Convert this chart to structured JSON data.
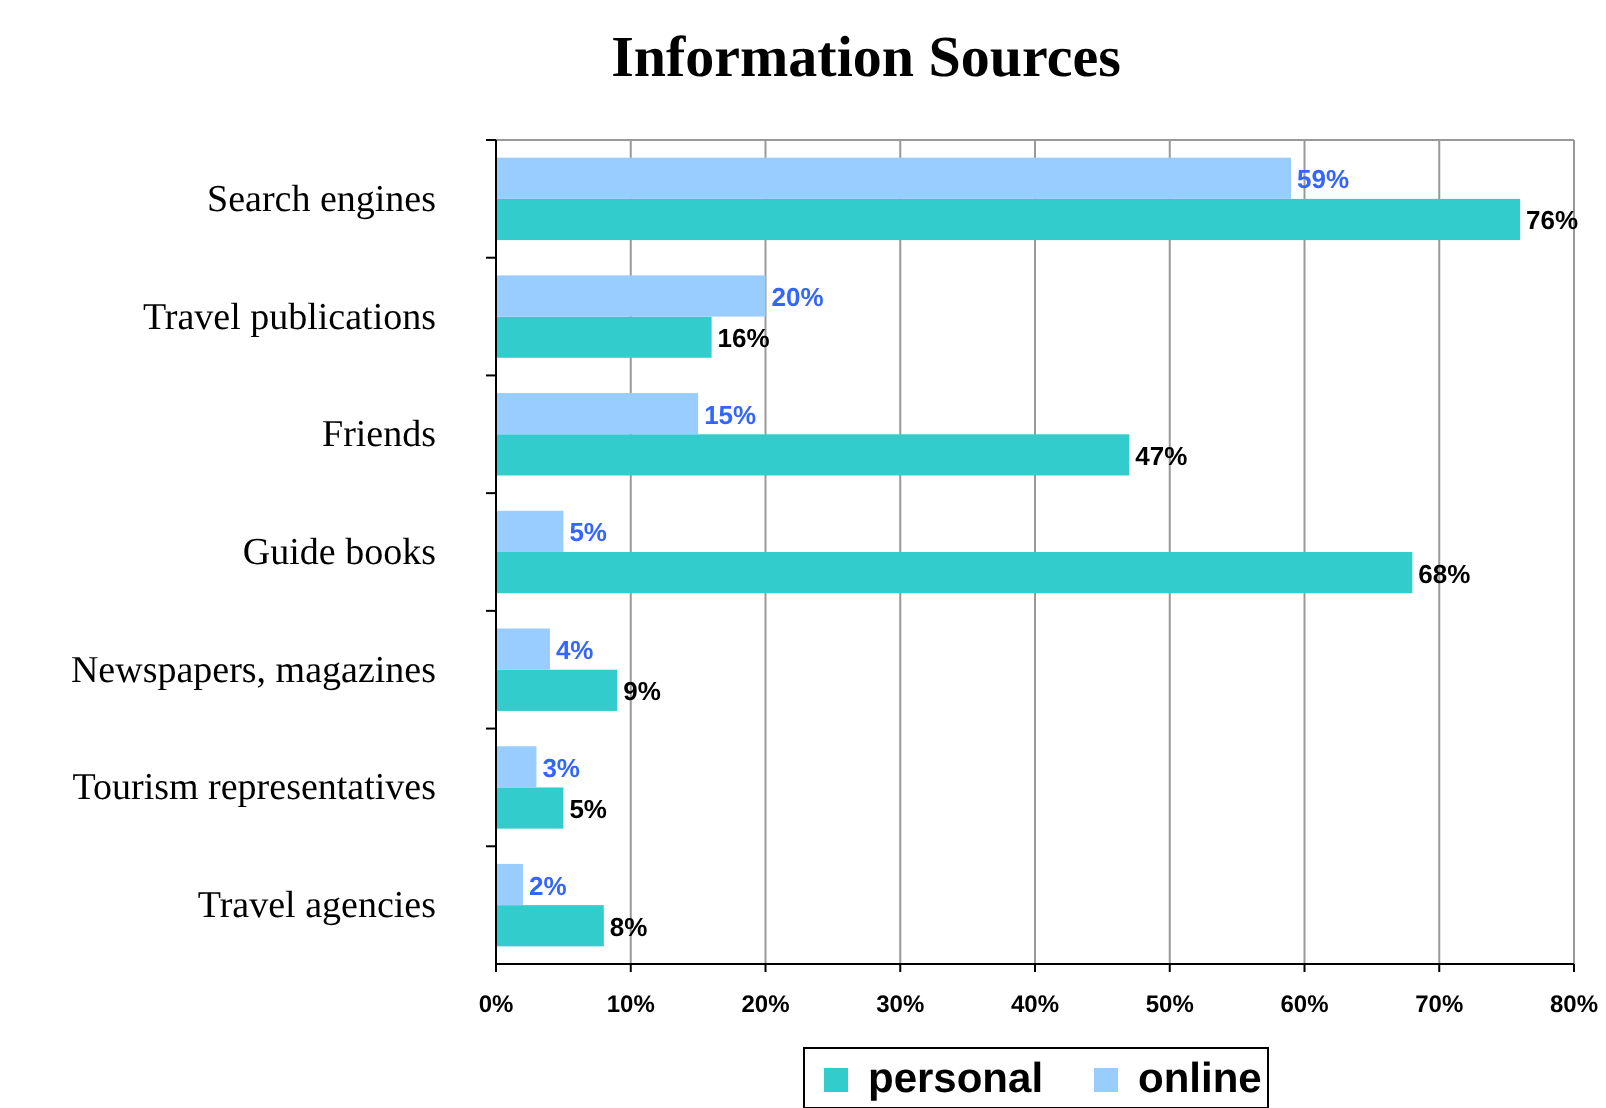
{
  "chart_data": {
    "type": "bar",
    "orientation": "horizontal",
    "title": "Information Sources",
    "categories": [
      "Search engines",
      "Travel publications",
      "Friends",
      "Guide books",
      "Newspapers, magazines",
      "Tourism representatives",
      "Travel agencies"
    ],
    "series": [
      {
        "name": "personal",
        "color": "#33cccc",
        "values": [
          76,
          16,
          47,
          68,
          9,
          5,
          8
        ],
        "value_labels": [
          "76%",
          "16%",
          "47%",
          "68%",
          "9%",
          "5%",
          "8%"
        ]
      },
      {
        "name": "online",
        "color": "#99ccff",
        "values": [
          59,
          20,
          15,
          5,
          4,
          3,
          2
        ],
        "value_labels": [
          "59%",
          "20%",
          "15%",
          "5%",
          "4%",
          "3%",
          "2%"
        ]
      }
    ],
    "xlim": [
      0,
      80
    ],
    "xticks": [
      {
        "value": 0,
        "label": "0%"
      },
      {
        "value": 10,
        "label": "10%"
      },
      {
        "value": 20,
        "label": "20%"
      },
      {
        "value": 30,
        "label": "30%"
      },
      {
        "value": 40,
        "label": "40%"
      },
      {
        "value": 50,
        "label": "50%"
      },
      {
        "value": 60,
        "label": "60%"
      },
      {
        "value": 70,
        "label": "70%"
      },
      {
        "value": 80,
        "label": "80%"
      }
    ],
    "grid": "x",
    "legend": "bottom"
  }
}
